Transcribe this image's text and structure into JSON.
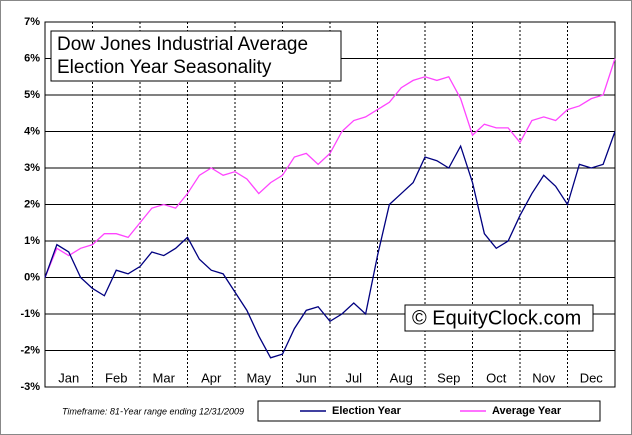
{
  "chart_data": {
    "type": "line",
    "title": "Dow Jones Industrial Average",
    "subtitle": "Election Year Seasonality",
    "annotation": "© EquityClock.com",
    "footnote": "Timeframe: 81-Year range ending 12/31/2009",
    "x": [
      0,
      0.25,
      0.5,
      0.75,
      1,
      1.25,
      1.5,
      1.75,
      2,
      2.25,
      2.5,
      2.75,
      3,
      3.25,
      3.5,
      3.75,
      4,
      4.25,
      4.5,
      4.75,
      5,
      5.25,
      5.5,
      5.75,
      6,
      6.25,
      6.5,
      6.75,
      7,
      7.25,
      7.5,
      7.75,
      8,
      8.25,
      8.5,
      8.75,
      9,
      9.25,
      9.5,
      9.75,
      10,
      10.25,
      10.5,
      10.75,
      11,
      11.25,
      11.5,
      11.75,
      12
    ],
    "xlim": [
      0,
      12
    ],
    "xticks": [
      {
        "value": 0.5,
        "label": "Jan"
      },
      {
        "value": 1.5,
        "label": "Feb"
      },
      {
        "value": 2.5,
        "label": "Mar"
      },
      {
        "value": 3.5,
        "label": "Apr"
      },
      {
        "value": 4.5,
        "label": "May"
      },
      {
        "value": 5.5,
        "label": "Jun"
      },
      {
        "value": 6.5,
        "label": "Jul"
      },
      {
        "value": 7.5,
        "label": "Aug"
      },
      {
        "value": 8.5,
        "label": "Sep"
      },
      {
        "value": 9.5,
        "label": "Oct"
      },
      {
        "value": 10.5,
        "label": "Nov"
      },
      {
        "value": 11.5,
        "label": "Dec"
      }
    ],
    "ylim": [
      -3,
      7
    ],
    "yticks": [
      {
        "value": -3,
        "label": "-3%"
      },
      {
        "value": -2,
        "label": "-2%"
      },
      {
        "value": -1,
        "label": "-1%"
      },
      {
        "value": 0,
        "label": "0%"
      },
      {
        "value": 1,
        "label": "1%"
      },
      {
        "value": 2,
        "label": "2%"
      },
      {
        "value": 3,
        "label": "3%"
      },
      {
        "value": 4,
        "label": "4%"
      },
      {
        "value": 5,
        "label": "5%"
      },
      {
        "value": 6,
        "label": "6%"
      },
      {
        "value": 7,
        "label": "7%"
      }
    ],
    "grid": true,
    "series": [
      {
        "name": "Election Year",
        "color": "#000080",
        "values": [
          0,
          0.9,
          0.7,
          0.0,
          -0.3,
          -0.5,
          0.2,
          0.1,
          0.3,
          0.7,
          0.6,
          0.8,
          1.1,
          0.5,
          0.2,
          0.1,
          -0.4,
          -0.9,
          -1.6,
          -2.2,
          -2.1,
          -1.4,
          -0.9,
          -0.8,
          -1.2,
          -1.0,
          -0.7,
          -1.0,
          0.6,
          2.0,
          2.3,
          2.6,
          3.3,
          3.2,
          3.0,
          3.6,
          2.6,
          1.2,
          0.8,
          1.0,
          1.7,
          2.3,
          2.8,
          2.5,
          2.0,
          3.1,
          3.0,
          3.1,
          4.0
        ]
      },
      {
        "name": "Average Year",
        "color": "#ff44ff",
        "values": [
          0,
          0.8,
          0.6,
          0.8,
          0.9,
          1.2,
          1.2,
          1.1,
          1.5,
          1.9,
          2.0,
          1.9,
          2.3,
          2.8,
          3.0,
          2.8,
          2.9,
          2.7,
          2.3,
          2.6,
          2.8,
          3.3,
          3.4,
          3.1,
          3.4,
          4.0,
          4.3,
          4.4,
          4.6,
          4.8,
          5.2,
          5.4,
          5.5,
          5.4,
          5.5,
          4.9,
          3.9,
          4.2,
          4.1,
          4.1,
          3.7,
          4.3,
          4.4,
          4.3,
          4.6,
          4.7,
          4.9,
          5.0,
          6.0
        ]
      }
    ]
  }
}
